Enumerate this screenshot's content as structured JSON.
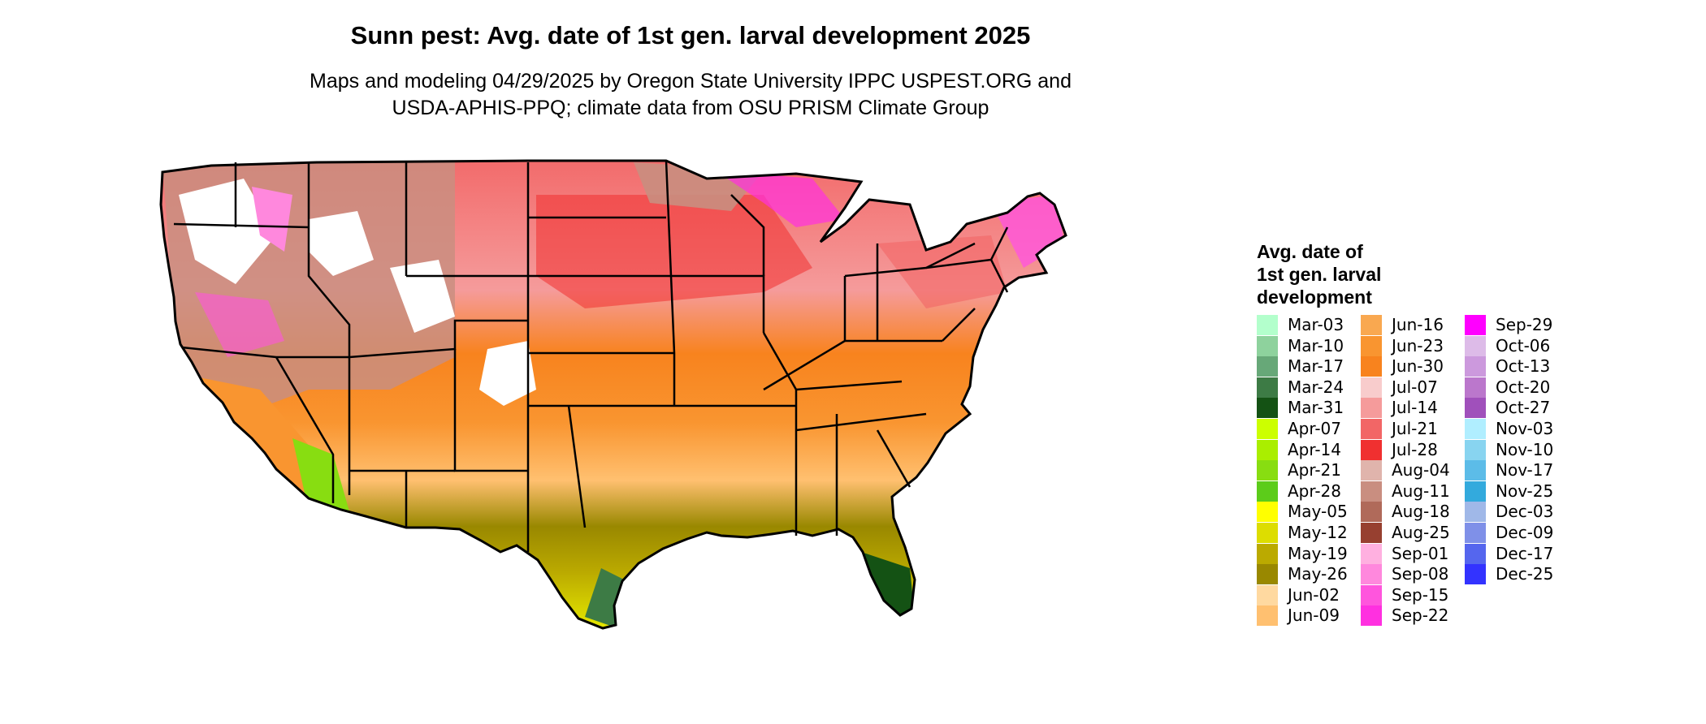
{
  "header": {
    "title": "Sunn pest: Avg. date of 1st gen. larval development 2025",
    "subtitle_line1": "Maps and modeling 04/29/2025 by Oregon State University IPPC USPEST.ORG and",
    "subtitle_line2": "USDA-APHIS-PPQ; climate data from OSU PRISM Climate Group"
  },
  "legend": {
    "title_line1": "Avg. date of",
    "title_line2": "1st gen. larval",
    "title_line3": "development",
    "columns": [
      [
        {
          "label": "Mar-03",
          "color": "#b3ffcc"
        },
        {
          "label": "Mar-10",
          "color": "#8ed29d"
        },
        {
          "label": "Mar-17",
          "color": "#67a878"
        },
        {
          "label": "Mar-24",
          "color": "#3d7b45"
        },
        {
          "label": "Mar-31",
          "color": "#145214"
        },
        {
          "label": "Apr-07",
          "color": "#ccff00"
        },
        {
          "label": "Apr-14",
          "color": "#aaee00"
        },
        {
          "label": "Apr-21",
          "color": "#88dd11"
        },
        {
          "label": "Apr-28",
          "color": "#5ccc1a"
        },
        {
          "label": "May-05",
          "color": "#ffff00"
        },
        {
          "label": "May-12",
          "color": "#dddd00"
        },
        {
          "label": "May-19",
          "color": "#bbaa00"
        },
        {
          "label": "May-26",
          "color": "#998800"
        },
        {
          "label": "Jun-02",
          "color": "#ffd9a0"
        },
        {
          "label": "Jun-09",
          "color": "#ffc070"
        }
      ],
      [
        {
          "label": "Jun-16",
          "color": "#f9a850"
        },
        {
          "label": "Jun-23",
          "color": "#f99530"
        },
        {
          "label": "Jun-30",
          "color": "#f8831e"
        },
        {
          "label": "Jul-07",
          "color": "#f8cccc"
        },
        {
          "label": "Jul-14",
          "color": "#f59b9b"
        },
        {
          "label": "Jul-21",
          "color": "#f26666"
        },
        {
          "label": "Jul-28",
          "color": "#f03030"
        },
        {
          "label": "Aug-04",
          "color": "#e0b4ac"
        },
        {
          "label": "Aug-11",
          "color": "#c98e80"
        },
        {
          "label": "Aug-18",
          "color": "#b06a5a"
        },
        {
          "label": "Aug-25",
          "color": "#974030"
        },
        {
          "label": "Sep-01",
          "color": "#ffb0e0"
        },
        {
          "label": "Sep-08",
          "color": "#ff88dd"
        },
        {
          "label": "Sep-15",
          "color": "#ff55dd"
        },
        {
          "label": "Sep-22",
          "color": "#ff30e0"
        }
      ],
      [
        {
          "label": "Sep-29",
          "color": "#ff00ff"
        },
        {
          "label": "Oct-06",
          "color": "#ddbbe8"
        },
        {
          "label": "Oct-13",
          "color": "#cc99dd"
        },
        {
          "label": "Oct-20",
          "color": "#bb77cc"
        },
        {
          "label": "Oct-27",
          "color": "#a050bb"
        },
        {
          "label": "Nov-03",
          "color": "#b0eeff"
        },
        {
          "label": "Nov-10",
          "color": "#88d4f0"
        },
        {
          "label": "Nov-17",
          "color": "#5cbce8"
        },
        {
          "label": "Nov-25",
          "color": "#33aadd"
        },
        {
          "label": "Dec-03",
          "color": "#a0b8e8"
        },
        {
          "label": "Dec-09",
          "color": "#7f90e8"
        },
        {
          "label": "Dec-17",
          "color": "#5566ee"
        },
        {
          "label": "Dec-25",
          "color": "#3333ff"
        }
      ]
    ]
  }
}
